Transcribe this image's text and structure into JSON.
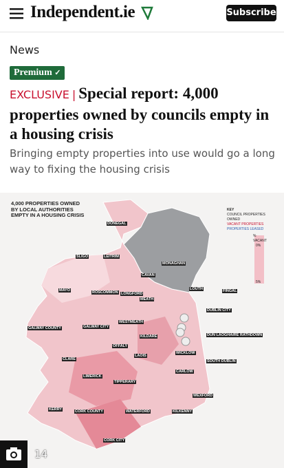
{
  "header": {
    "logo": "Independent.ie",
    "subscribe": "Subscribe"
  },
  "section": "News",
  "badge": "Premium",
  "article": {
    "kicker": "EXCLUSIVE",
    "title": "Special report: 4,000 properties owned by councils empty in a housing crisis",
    "subtitle": "Bringing empty properties into use would go a long way to fixing the housing crisis"
  },
  "image": {
    "title": "4,000 PROPERTIES OWNED BY LOCAL AUTHORITIES EMPTY IN A HOUSING CRISIS",
    "key": {
      "heading": "KEY",
      "items": [
        "COUNCIL PROPERTIES OWNED",
        "VACANT PROPERTIES",
        "PROPERTIES LEASED"
      ],
      "scale": [
        "% VACANT",
        "0%",
        "5%"
      ]
    },
    "counties": [
      "DONEGAL",
      "SLIGO",
      "LEITRIM",
      "MONAGHAN",
      "CAVAN",
      "LOUTH",
      "MAYO",
      "ROSCOMMON",
      "LONGFORD",
      "MEATH",
      "FINGAL",
      "DUBLIN CITY",
      "GALWAY COUNTY",
      "GALWAY CITY",
      "WESTMEATH",
      "KILDARE",
      "DUN LAOGHAIRE RATHDOWN",
      "OFFALY",
      "LAOIS",
      "WICKLOW",
      "SOUTH DUBLIN",
      "CLARE",
      "CARLOW",
      "LIMERICK",
      "TIPPERARY",
      "WEXFORD",
      "KERRY",
      "CORK COUNTY",
      "WATERFORD",
      "KILKENNY",
      "CORK CITY"
    ],
    "counter": "14"
  }
}
